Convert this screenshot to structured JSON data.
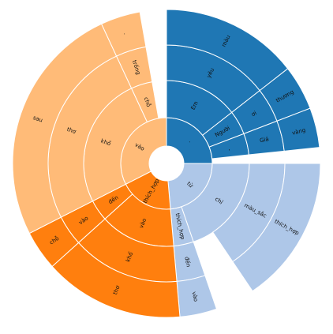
{
  "colors": {
    "blue_dark": "#1f77b4",
    "blue_light": "#aec7e8",
    "orange_dark": "#ff7f0e",
    "orange_light": "#ffbb78"
  },
  "chart_data": {
    "type": "sunburst",
    "title": "",
    "root": {
      "angle_start": 0,
      "angle_end": 360
    },
    "segments": [
      {
        "label": ".",
        "ring": 1,
        "a0": 0,
        "a1": 90,
        "color": "blue_dark"
      },
      {
        "label": "Em",
        "ring": 2,
        "a0": 0,
        "a1": 52,
        "color": "blue_dark"
      },
      {
        "label": "yêu",
        "ring": 3,
        "a0": 0,
        "a1": 52,
        "color": "blue_dark"
      },
      {
        "label": "màu",
        "ring": 4,
        "a0": 0,
        "a1": 52,
        "color": "blue_dark"
      },
      {
        "label": "Người",
        "ring": 2,
        "a0": 52,
        "a1": 69,
        "color": "blue_dark"
      },
      {
        "label": "ơi",
        "ring": 3,
        "a0": 52,
        "a1": 69,
        "color": "blue_dark"
      },
      {
        "label": "thương",
        "ring": 4,
        "a0": 52,
        "a1": 69,
        "color": "blue_dark"
      },
      {
        "label": ",",
        "ring": 2,
        "a0": 69,
        "a1": 84,
        "color": "blue_dark"
      },
      {
        "label": "Giá",
        "ring": 3,
        "a0": 69,
        "a1": 84,
        "color": "blue_dark"
      },
      {
        "label": "vàng",
        "ring": 4,
        "a0": 69,
        "a1": 84,
        "color": "blue_dark"
      },
      {
        "label": "từ",
        "ring": 1,
        "a0": 90,
        "a1": 175,
        "color": "blue_light"
      },
      {
        "label": "chỉ",
        "ring": 2,
        "a0": 90,
        "a1": 161,
        "color": "blue_light"
      },
      {
        "label": "màu_sắc",
        "ring": 3,
        "a0": 90,
        "a1": 146,
        "color": "blue_light"
      },
      {
        "label": "thích_hợp",
        "ring": 4,
        "a0": 90,
        "a1": 146,
        "color": "blue_light"
      },
      {
        "label": "thích_hợp",
        "ring": 2,
        "a0": 161,
        "a1": 175,
        "color": "blue_light"
      },
      {
        "label": "đến",
        "ring": 3,
        "a0": 161,
        "a1": 175,
        "color": "blue_light"
      },
      {
        "label": "vào",
        "ring": 4,
        "a0": 161,
        "a1": 175,
        "color": "blue_light"
      },
      {
        "label": "thích_hợp",
        "ring": 1,
        "a0": 175,
        "a1": 243,
        "color": "orange_dark"
      },
      {
        "label": "vào",
        "ring": 2,
        "a0": 175,
        "a1": 228,
        "color": "orange_dark"
      },
      {
        "label": "khổ",
        "ring": 3,
        "a0": 175,
        "a1": 228,
        "color": "orange_dark"
      },
      {
        "label": "thơ",
        "ring": 4,
        "a0": 175,
        "a1": 228,
        "color": "orange_dark"
      },
      {
        "label": "đến",
        "ring": 2,
        "a0": 228,
        "a1": 243,
        "color": "orange_dark"
      },
      {
        "label": "vào",
        "ring": 3,
        "a0": 228,
        "a1": 243,
        "color": "orange_dark"
      },
      {
        "label": "chỗ",
        "ring": 4,
        "a0": 228,
        "a1": 243,
        "color": "orange_dark"
      },
      {
        "label": "vào",
        "ring": 1,
        "a0": 243,
        "a1": 360,
        "color": "orange_light"
      },
      {
        "label": "khổ",
        "ring": 2,
        "a0": 243,
        "a1": 335,
        "color": "orange_light"
      },
      {
        "label": "thơ",
        "ring": 3,
        "a0": 243,
        "a1": 335,
        "color": "orange_light"
      },
      {
        "label": "sau",
        "ring": 4,
        "a0": 243,
        "a1": 335,
        "color": "orange_light"
      },
      {
        "label": "chỗ",
        "ring": 2,
        "a0": 335,
        "a1": 350,
        "color": "orange_light"
      },
      {
        "label": "trống",
        "ring": 3,
        "a0": 335,
        "a1": 350,
        "color": "orange_light"
      },
      {
        "label": ".",
        "ring": 4,
        "a0": 335,
        "a1": 350,
        "color": "orange_light"
      }
    ]
  }
}
